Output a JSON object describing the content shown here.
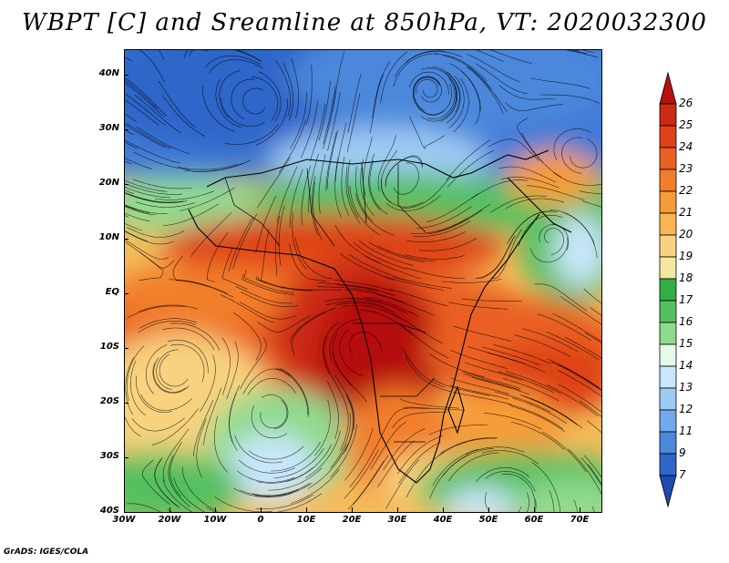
{
  "title": "WBPT [C] and Sreamline at 850hPa, VT: 2020032300",
  "footer": "GrADS: IGES/COLA",
  "map": {
    "lon_range": [
      -30,
      75
    ],
    "lat_range": [
      -40,
      45
    ],
    "lat_labels": [
      "40N",
      "30N",
      "20N",
      "10N",
      "EQ",
      "10S",
      "20S",
      "30S",
      "40S"
    ],
    "lon_labels": [
      "30W",
      "20W",
      "10W",
      "0",
      "10E",
      "20E",
      "30E",
      "40E",
      "50E",
      "60E",
      "70E"
    ]
  },
  "colorbar": {
    "levels": [
      "26",
      "25",
      "24",
      "23",
      "22",
      "21",
      "20",
      "19",
      "18",
      "17",
      "16",
      "15",
      "14",
      "13",
      "12",
      "11",
      "9",
      "7"
    ],
    "colors": [
      "#b5110e",
      "#cc2a12",
      "#de4219",
      "#ea6022",
      "#f27e2b",
      "#f79b38",
      "#f8b653",
      "#f8d27e",
      "#f2e8a2",
      "#33ad45",
      "#55c060",
      "#90da8e",
      "#e6fae6",
      "#c9e6fa",
      "#9ecbf4",
      "#72a9ea",
      "#4b88dc",
      "#2f66c9",
      "#1f4ab0"
    ]
  }
}
